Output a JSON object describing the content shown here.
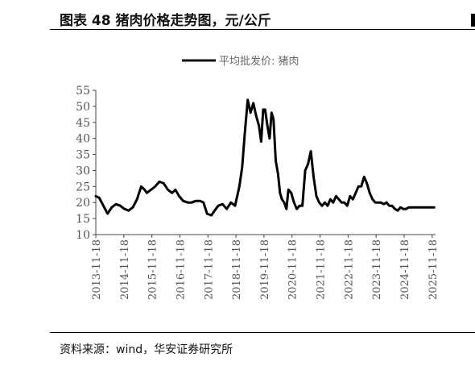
{
  "figure": {
    "title": "图表 48  猪肉价格走势图，元/公斤",
    "source": "资料来源：wind，华安证券研究所"
  },
  "chart_data": {
    "type": "line",
    "legend": {
      "label": "平均批发价: 猪肉",
      "placement": "top-center"
    },
    "y_ticks": [
      "10",
      "15",
      "20",
      "25",
      "30",
      "35",
      "40",
      "45",
      "50",
      "55"
    ],
    "ylim": [
      10,
      55
    ],
    "x_ticks": [
      "2013-11-18",
      "2014-11-18",
      "2015-11-18",
      "2016-11-18",
      "2017-11-18",
      "2018-11-18",
      "2019-11-18",
      "2020-11-18",
      "2021-11-18",
      "2022-11-18",
      "2023-11-18",
      "2024-11-18",
      "2025-11-18"
    ],
    "x_tick_values": [
      2013.88,
      2014.88,
      2015.88,
      2016.88,
      2017.88,
      2018.88,
      2019.88,
      2020.88,
      2021.88,
      2022.88,
      2023.88,
      2024.88,
      2025.88
    ],
    "xlim": [
      2013.88,
      2026.0
    ],
    "grid": false,
    "series": [
      {
        "name": "平均批发价: 猪肉",
        "x": [
          2013.88,
          2014.0,
          2014.15,
          2014.3,
          2014.45,
          2014.6,
          2014.75,
          2014.9,
          2015.05,
          2015.2,
          2015.35,
          2015.5,
          2015.62,
          2015.7,
          2015.85,
          2016.0,
          2016.15,
          2016.3,
          2016.45,
          2016.6,
          2016.72,
          2016.85,
          2017.0,
          2017.15,
          2017.3,
          2017.45,
          2017.6,
          2017.72,
          2017.85,
          2018.0,
          2018.12,
          2018.25,
          2018.4,
          2018.55,
          2018.7,
          2018.85,
          2019.0,
          2019.1,
          2019.2,
          2019.3,
          2019.4,
          2019.5,
          2019.6,
          2019.7,
          2019.78,
          2019.85,
          2019.92,
          2020.0,
          2020.08,
          2020.15,
          2020.22,
          2020.3,
          2020.38,
          2020.45,
          2020.52,
          2020.6,
          2020.68,
          2020.75,
          2020.85,
          2020.95,
          2021.05,
          2021.15,
          2021.25,
          2021.35,
          2021.45,
          2021.55,
          2021.65,
          2021.75,
          2021.85,
          2021.95,
          2022.05,
          2022.15,
          2022.25,
          2022.35,
          2022.45,
          2022.55,
          2022.65,
          2022.75,
          2022.85,
          2022.95,
          2023.05,
          2023.15,
          2023.25,
          2023.35,
          2023.45,
          2023.55,
          2023.65,
          2023.75,
          2023.85,
          2023.95,
          2024.05,
          2024.15,
          2024.25,
          2024.35,
          2024.45,
          2024.55,
          2024.65,
          2024.75,
          2024.85,
          2024.95,
          2025.05,
          2025.15,
          2025.25,
          2025.35,
          2025.45,
          2025.55,
          2025.65,
          2025.75,
          2025.85,
          2025.95
        ],
        "values": [
          22,
          21.5,
          19,
          16.5,
          18.5,
          19.5,
          19,
          18,
          17.5,
          18.5,
          21,
          25,
          24,
          23,
          24,
          25,
          26.5,
          26,
          24,
          23,
          24,
          22,
          20.5,
          20,
          20,
          20.5,
          20.5,
          20,
          16.5,
          16,
          17.5,
          19,
          19.5,
          18,
          20,
          19,
          25,
          31,
          42,
          52,
          48,
          51,
          47,
          44,
          39,
          49,
          49,
          44,
          40,
          48,
          46,
          33,
          29,
          23,
          21,
          20,
          18,
          24,
          23,
          20,
          18,
          19,
          19,
          30,
          32,
          36,
          28,
          22,
          20,
          19,
          20,
          19,
          21,
          20,
          22,
          21,
          20,
          20,
          19,
          22,
          21,
          23,
          25,
          25,
          28,
          26,
          23,
          21,
          20,
          20,
          20,
          19.5,
          20,
          19,
          19,
          18,
          17.5,
          18.5,
          18,
          18,
          18.5,
          18.5,
          18.5,
          18.5,
          18.5,
          18.5,
          18.5,
          18.5,
          18.5,
          18.5
        ]
      }
    ]
  }
}
